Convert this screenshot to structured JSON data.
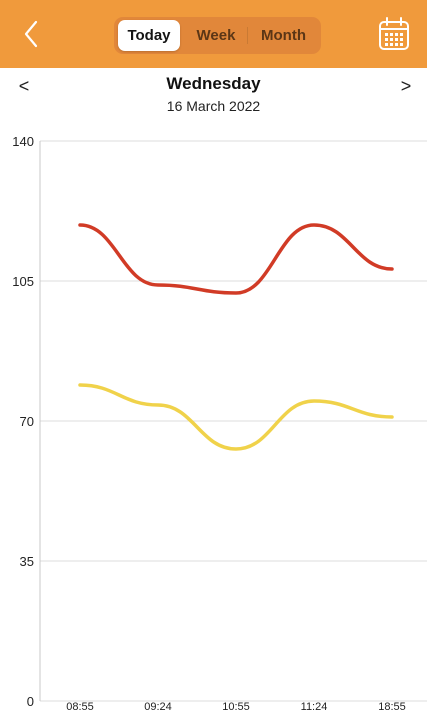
{
  "toolbar": {
    "back_icon": "chevron-left-icon",
    "tabs": [
      {
        "label": "Today",
        "active": true
      },
      {
        "label": "Week",
        "active": false
      },
      {
        "label": "Month",
        "active": false
      }
    ],
    "calendar_icon": "calendar-icon",
    "colors": {
      "bar": "#f09a3c",
      "segment_bg": "#e1873a"
    }
  },
  "date_nav": {
    "prev": "<",
    "next": ">",
    "day": "Wednesday",
    "date": "16 March 2022"
  },
  "chart_data": {
    "type": "line",
    "x": [
      "08:55",
      "09:24",
      "10:55",
      "11:24",
      "18:55"
    ],
    "ylim": [
      0,
      140
    ],
    "yticks": [
      0,
      35,
      70,
      105,
      140
    ],
    "grid": true,
    "smooth": true,
    "series": [
      {
        "values": [
          119,
          104,
          102,
          119,
          108
        ],
        "color": "#d13b26"
      },
      {
        "values": [
          79,
          74,
          63,
          75,
          71
        ],
        "color": "#f0d24a"
      }
    ]
  }
}
